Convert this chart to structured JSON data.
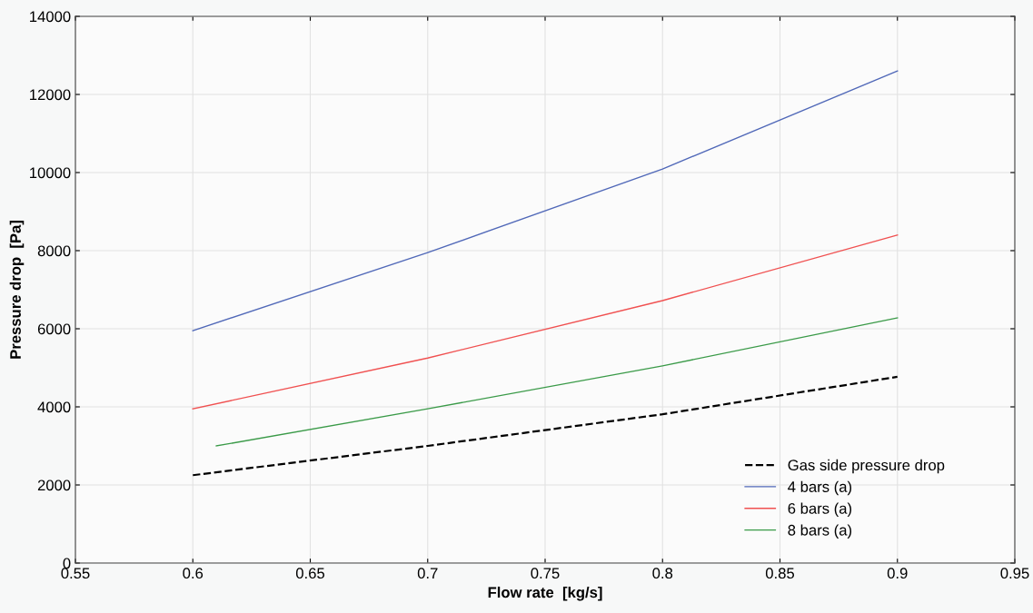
{
  "chart_data": {
    "type": "line",
    "xlabel": "Flow rate  [kg/s]",
    "ylabel": "Pressure drop  [Pa]",
    "x": [
      0.6,
      0.7,
      0.8,
      0.9
    ],
    "series": [
      {
        "name": "Gas side pressure drop",
        "color": "#000000",
        "line_style": "dashed",
        "values": [
          2250,
          3000,
          3810,
          4770
        ]
      },
      {
        "name": "4 bars (a)",
        "color": "#5068b8",
        "values": [
          5950,
          7950,
          10090,
          12600
        ]
      },
      {
        "name": "6 bars (a)",
        "color": "#f05050",
        "values": [
          3950,
          5250,
          6720,
          8400
        ]
      },
      {
        "name": "8 bars (a)",
        "color": "#3a9a48",
        "x": [
          0.61,
          0.7,
          0.8,
          0.9
        ],
        "values": [
          3000,
          3950,
          5050,
          6280
        ]
      }
    ],
    "xlim": [
      0.55,
      0.95
    ],
    "xticks": [
      0.55,
      0.6,
      0.65,
      0.7,
      0.75,
      0.8,
      0.85,
      0.9,
      0.95
    ],
    "ylim": [
      0,
      14000
    ],
    "yticks": [
      0,
      2000,
      4000,
      6000,
      8000,
      10000,
      12000,
      14000
    ],
    "grid": true,
    "legend": "bottom right",
    "marker": "none"
  }
}
